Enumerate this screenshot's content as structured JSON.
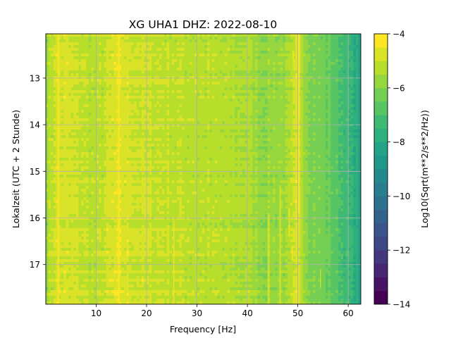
{
  "chart_data": {
    "type": "heatmap",
    "title": "XG UHA1  DHZ: 2022-08-10",
    "xlabel": "Frequency [Hz]",
    "ylabel": "Lokalzeit (UTC + 2 Stunde)",
    "xlim": [
      0,
      62.5
    ],
    "ylim": [
      12.05,
      17.85
    ],
    "y_inverted": true,
    "xticks": [
      10,
      20,
      30,
      40,
      50,
      60
    ],
    "yticks": [
      13,
      14,
      15,
      16,
      17
    ],
    "grid": true,
    "colorbar": {
      "label": "Log10(Sqrt(m**2/s**2/Hz))",
      "ticks": [
        -4,
        -6,
        -8,
        -10,
        -12,
        -14
      ],
      "range": [
        -14,
        -4
      ],
      "colormap": "viridis",
      "levels": 20
    },
    "approx_profile": {
      "description": "Approximate log10 amplitude versus frequency (values read from color)",
      "frequency_hz": [
        0,
        2,
        5,
        10,
        14,
        20,
        30,
        40,
        43,
        48,
        50,
        52,
        55,
        58,
        60,
        62.5
      ],
      "log10_amplitude": [
        -5.6,
        -4.8,
        -4.9,
        -5.3,
        -4.7,
        -5.0,
        -5.2,
        -5.4,
        -5.8,
        -5.6,
        -4.8,
        -5.9,
        -6.3,
        -6.8,
        -7.4,
        -8.2
      ]
    }
  }
}
